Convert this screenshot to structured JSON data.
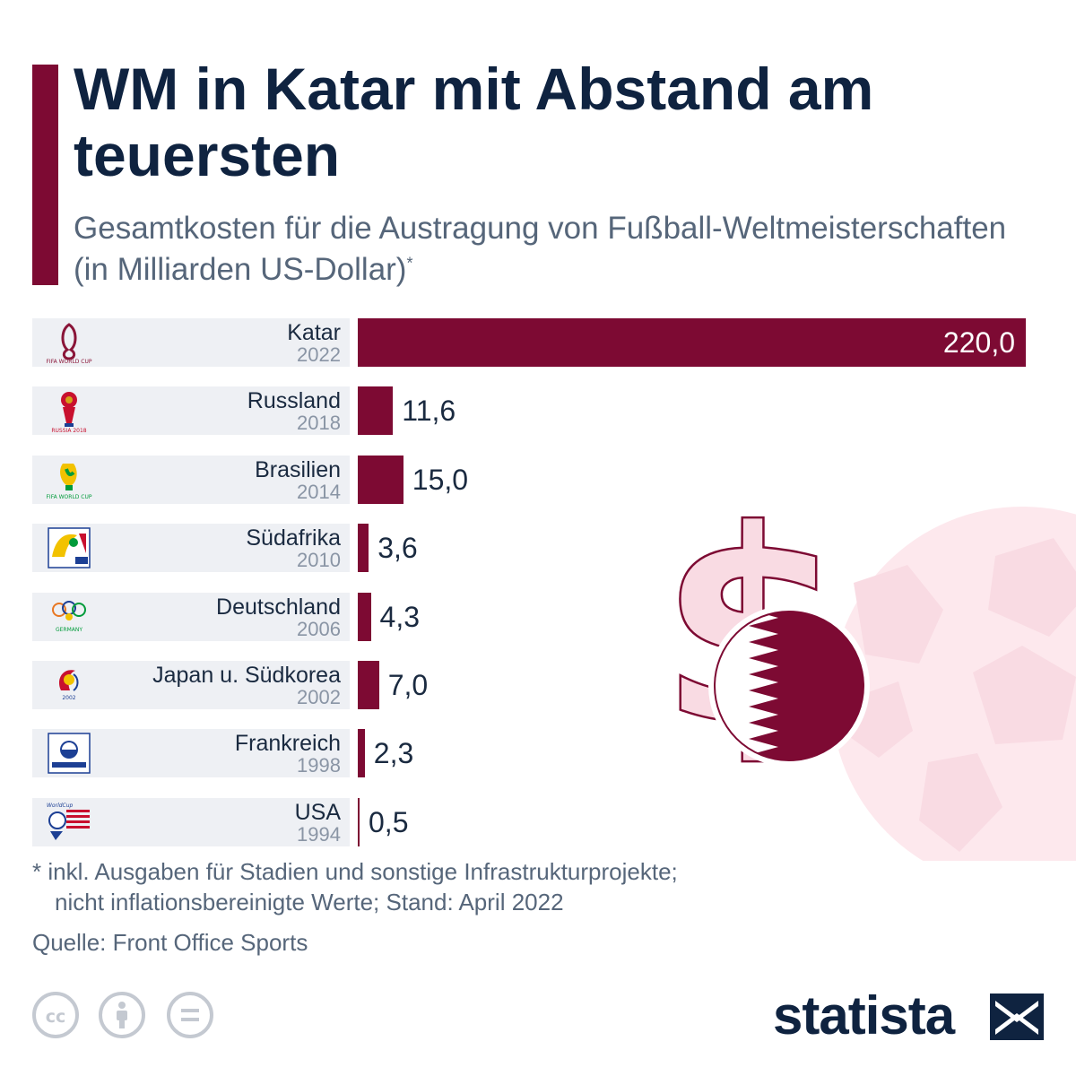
{
  "header": {
    "title": "WM in Katar mit Abstand am teuersten",
    "subtitle": "Gesamtkosten für die Austragung von Fußball-Weltmeisterschaften (in Milliarden US-Dollar)",
    "subtitle_mark": "*"
  },
  "chart_data": {
    "type": "bar",
    "orientation": "horizontal",
    "title": "WM in Katar mit Abstand am teuersten",
    "subtitle": "Gesamtkosten für die Austragung von Fußball-Weltmeisterschaften (in Milliarden US-Dollar)",
    "unit": "Milliarden US-Dollar",
    "categories": [
      "Katar 2022",
      "Russland 2018",
      "Brasilien 2014",
      "Südafrika 2010",
      "Deutschland 2006",
      "Japan u. Südkorea 2002",
      "Frankreich 1998",
      "USA 1994"
    ],
    "values": [
      220.0,
      11.6,
      15.0,
      3.6,
      4.3,
      7.0,
      2.3,
      0.5
    ],
    "xlim": [
      0,
      220
    ],
    "bar_color": "#7d0a33",
    "rows": [
      {
        "country": "Katar",
        "year": "2022",
        "value": 220.0,
        "label": "220,0",
        "logo": "qatar-2022-logo-icon"
      },
      {
        "country": "Russland",
        "year": "2018",
        "value": 11.6,
        "label": "11,6",
        "logo": "russia-2018-logo-icon"
      },
      {
        "country": "Brasilien",
        "year": "2014",
        "value": 15.0,
        "label": "15,0",
        "logo": "brazil-2014-logo-icon"
      },
      {
        "country": "Südafrika",
        "year": "2010",
        "value": 3.6,
        "label": "3,6",
        "logo": "south-africa-2010-logo-icon"
      },
      {
        "country": "Deutschland",
        "year": "2006",
        "value": 4.3,
        "label": "4,3",
        "logo": "germany-2006-logo-icon"
      },
      {
        "country": "Japan u. Südkorea",
        "year": "2002",
        "value": 7.0,
        "label": "7,0",
        "logo": "korea-japan-2002-logo-icon"
      },
      {
        "country": "Frankreich",
        "year": "1998",
        "value": 2.3,
        "label": "2,3",
        "logo": "france-1998-logo-icon"
      },
      {
        "country": "USA",
        "year": "1994",
        "value": 0.5,
        "label": "0,5",
        "logo": "usa-1994-logo-icon"
      }
    ]
  },
  "decoration": {
    "icons": [
      "dollar-sign-icon",
      "qatar-flag-icon",
      "soccer-ball-icon"
    ]
  },
  "footer": {
    "note_line1": "* inkl. Ausgaben für Stadien und sonstige Infrastrukturprojekte;",
    "note_line2": "nicht inflationsbereinigte Werte; Stand: April 2022",
    "source": "Quelle: Front Office Sports",
    "license_icons": [
      "cc-icon",
      "attribution-icon",
      "no-derivatives-icon"
    ],
    "brand": "statista"
  },
  "colors": {
    "accent": "#7d0a33",
    "title": "#0f2340",
    "muted": "#56667a",
    "label_bg": "#eef0f4",
    "deco_pink": "#f9dbe3"
  }
}
